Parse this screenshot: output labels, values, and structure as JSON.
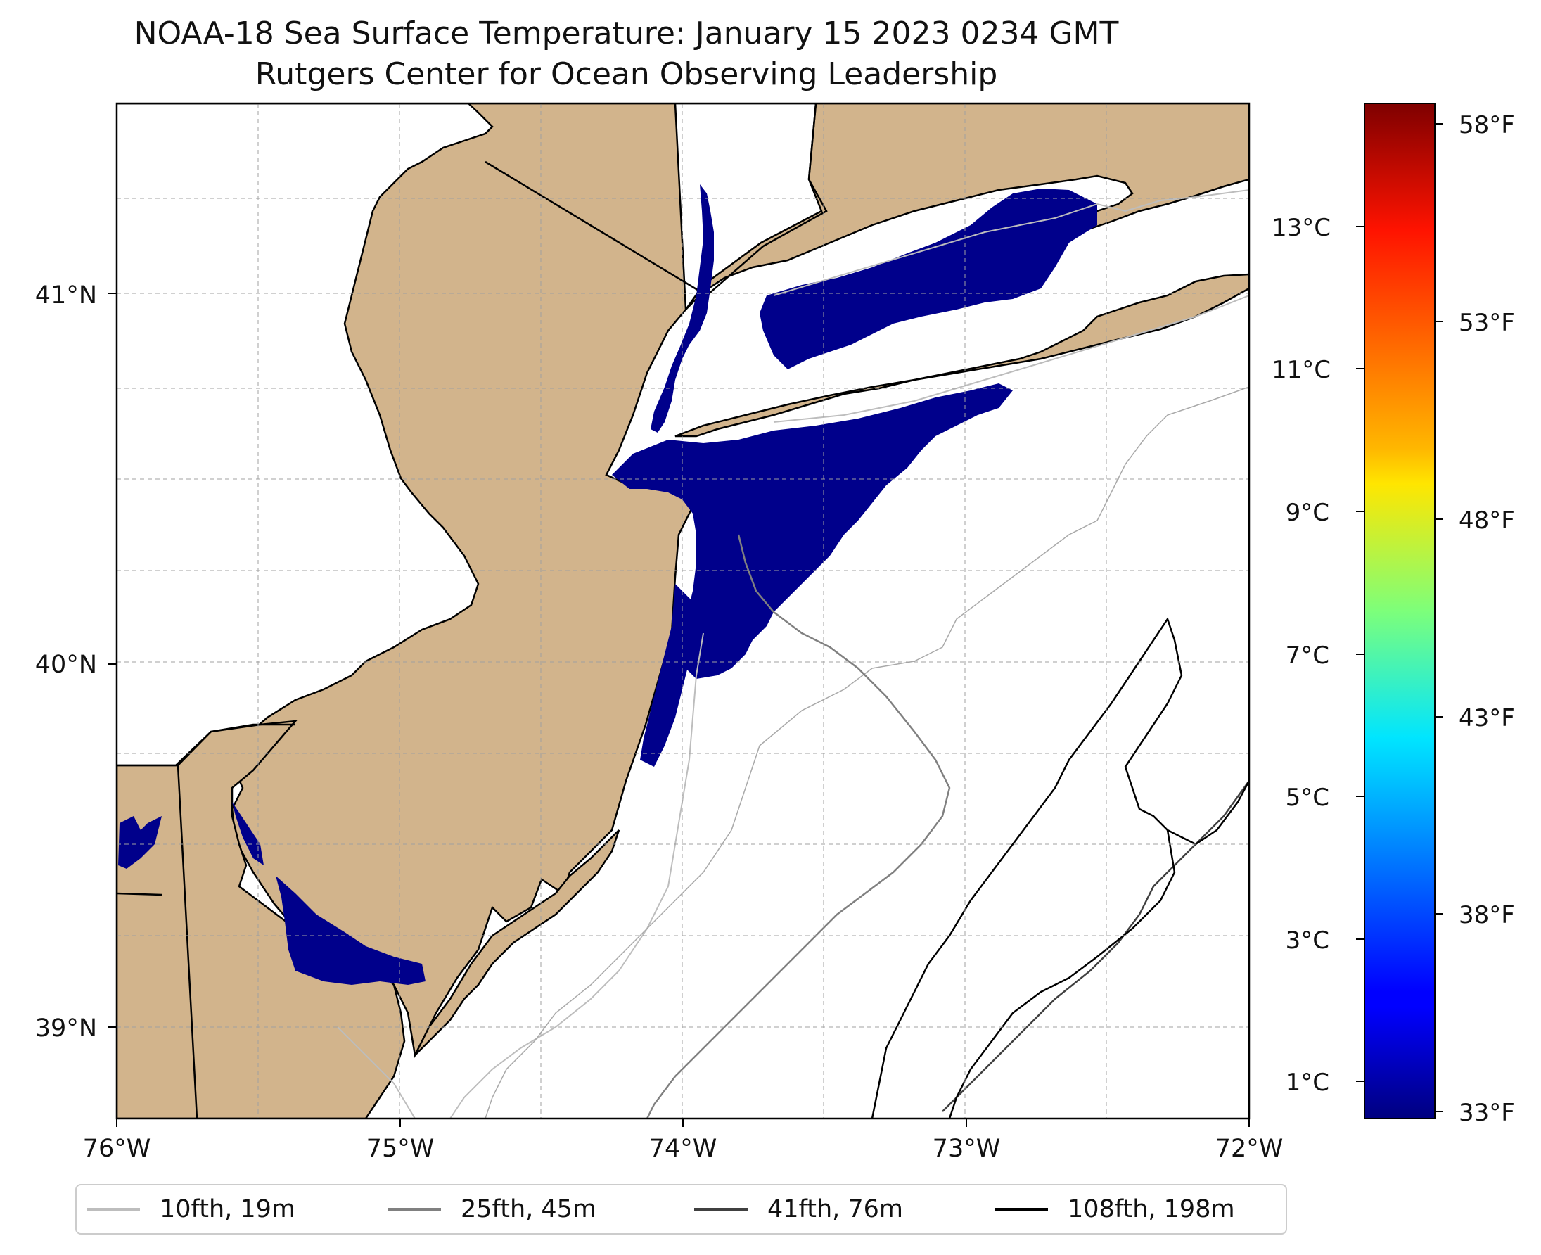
{
  "title": {
    "line1": "NOAA-18 Sea Surface Temperature: January 15 2023 0234 GMT",
    "line2": "Rutgers Center for Ocean Observing Leadership"
  },
  "map": {
    "lon_range": [
      -76,
      -72
    ],
    "lat_range": [
      38.7,
      41.5
    ],
    "lon_ticks": [
      "76°W",
      "75°W",
      "74°W",
      "73°W",
      "72°W"
    ],
    "lat_ticks": [
      "41°N",
      "40°N",
      "39°N"
    ],
    "colors": {
      "land": "#d2b48c",
      "water": "#ffffff",
      "cold_sst": "#00008b",
      "coast": "#000000",
      "grid": "#a0a0a0"
    }
  },
  "colorbar": {
    "celsius_ticks": [
      "13°C",
      "11°C",
      "9°C",
      "7°C",
      "5°C",
      "3°C",
      "1°C"
    ],
    "fahrenheit_ticks": [
      "58°F",
      "53°F",
      "48°F",
      "43°F",
      "38°F",
      "33°F"
    ],
    "colormap": "jet",
    "range_f": [
      33,
      59
    ]
  },
  "legend": {
    "items": [
      {
        "label": "10fth, 19m",
        "color": "#bdbdbd"
      },
      {
        "label": "25fth, 45m",
        "color": "#808080"
      },
      {
        "label": "41fth, 76m",
        "color": "#404040"
      },
      {
        "label": "108fth, 198m",
        "color": "#000000"
      }
    ]
  }
}
